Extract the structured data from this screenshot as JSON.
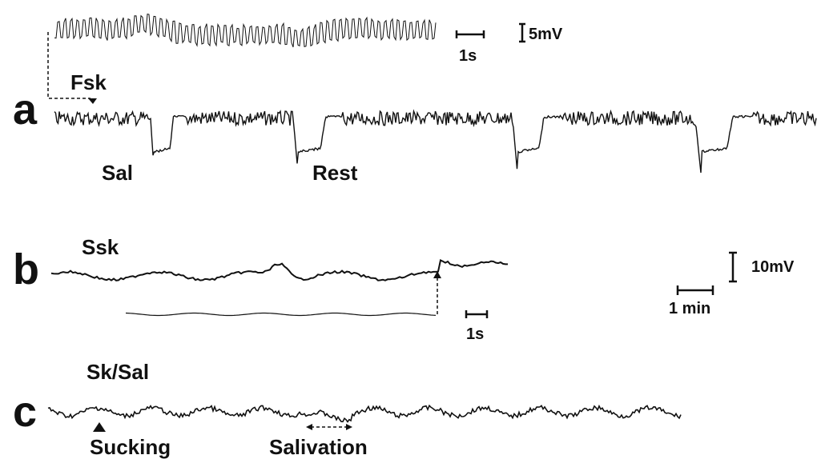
{
  "panels": [
    {
      "letter": "a",
      "trace_label": "Fsk"
    },
    {
      "letter": "b",
      "trace_label": "Ssk"
    },
    {
      "letter": "c",
      "trace_label": "Sk/Sal"
    }
  ],
  "annotations": {
    "sal": "Sal",
    "rest": "Rest",
    "sucking": "Sucking",
    "salivation": "Salivation"
  },
  "scale_bars": {
    "inset_a_voltage": "5mV",
    "inset_a_time": "1s",
    "inset_b_time": "1s",
    "main_voltage": "10mV",
    "main_time": "1 min"
  },
  "colors": {
    "trace": "#111111",
    "background": "#ffffff"
  }
}
